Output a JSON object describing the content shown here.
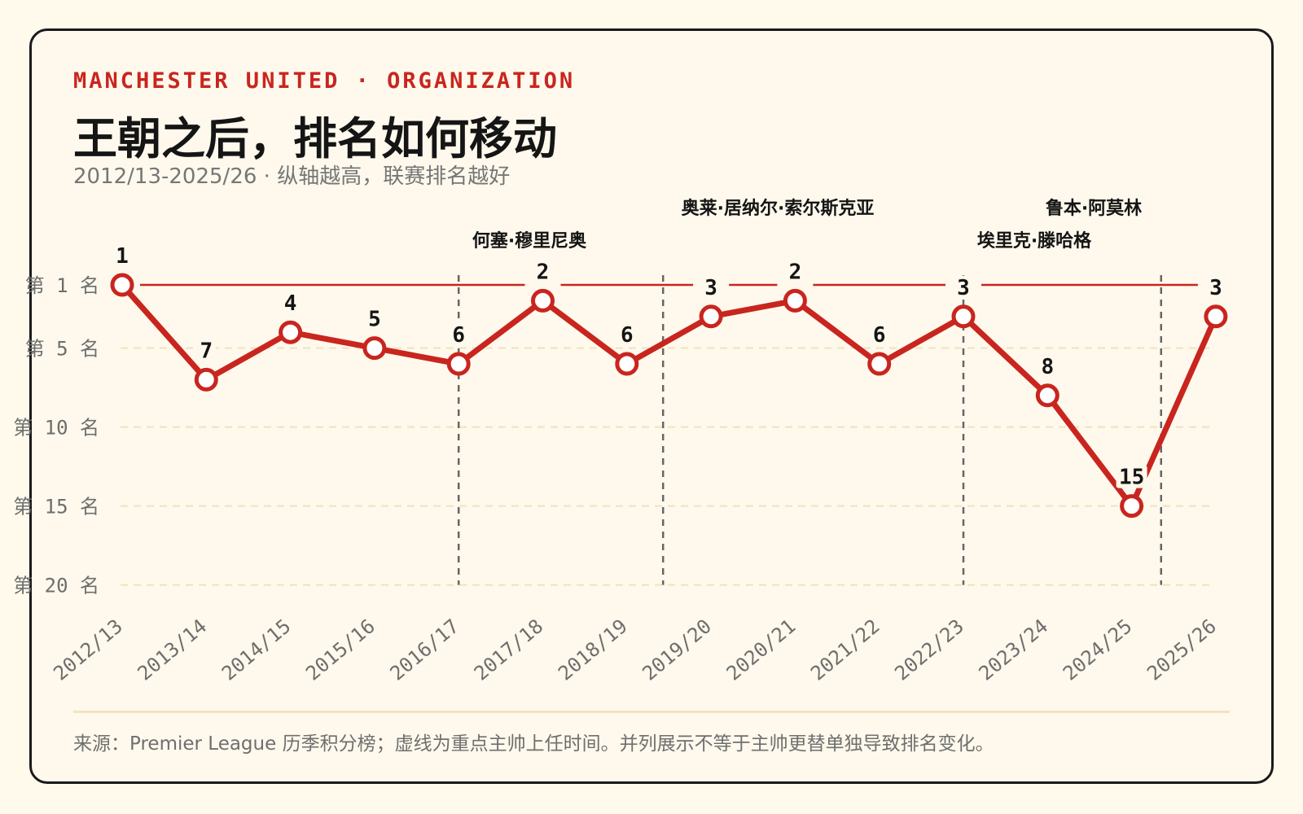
{
  "header": {
    "eyebrow": "MANCHESTER UNITED · ORGANIZATION",
    "title": "王朝之后，排名如何移动",
    "subtitle": "2012/13-2025/26 · 纵轴越高，联赛排名越好"
  },
  "footer": {
    "source": "来源：Premier League 历季积分榜；虚线为重点主帅上任时间。并列展示不等于主帅更替单独导致排名变化。"
  },
  "colors": {
    "line": "#c9251f",
    "marker_fill": "#ffffff",
    "grid": "#f0e2bf",
    "manager_line": "#666666",
    "axis_text": "#6e6e6e",
    "label_text": "#151515",
    "background": "#fef9ec"
  },
  "chart_data": {
    "type": "line",
    "x": [
      "2012/13",
      "2013/14",
      "2014/15",
      "2015/16",
      "2016/17",
      "2017/18",
      "2018/19",
      "2019/20",
      "2020/21",
      "2021/22",
      "2022/23",
      "2023/24",
      "2024/25",
      "2025/26"
    ],
    "series": [
      {
        "values": [
          1,
          7,
          4,
          5,
          6,
          2,
          6,
          3,
          2,
          6,
          3,
          8,
          15,
          3
        ]
      }
    ],
    "y_axis": {
      "inverted": true,
      "ylim": [
        1,
        20
      ],
      "ticks": [
        1,
        5,
        10,
        15,
        20
      ],
      "tick_labels": [
        "第 1 名",
        "第 5 名",
        "第 10 名",
        "第 15 名",
        "第 20 名"
      ]
    },
    "reference_line": 1,
    "grid": true,
    "managers": [
      {
        "name": "何塞·穆里尼奥",
        "start_index": 4
      },
      {
        "name": "奥莱·居纳尔·索尔斯克亚",
        "start_index": 6.43
      },
      {
        "name": "埃里克·滕哈格",
        "start_index": 10
      },
      {
        "name": "鲁本·阿莫林",
        "start_index": 12.35
      }
    ]
  }
}
